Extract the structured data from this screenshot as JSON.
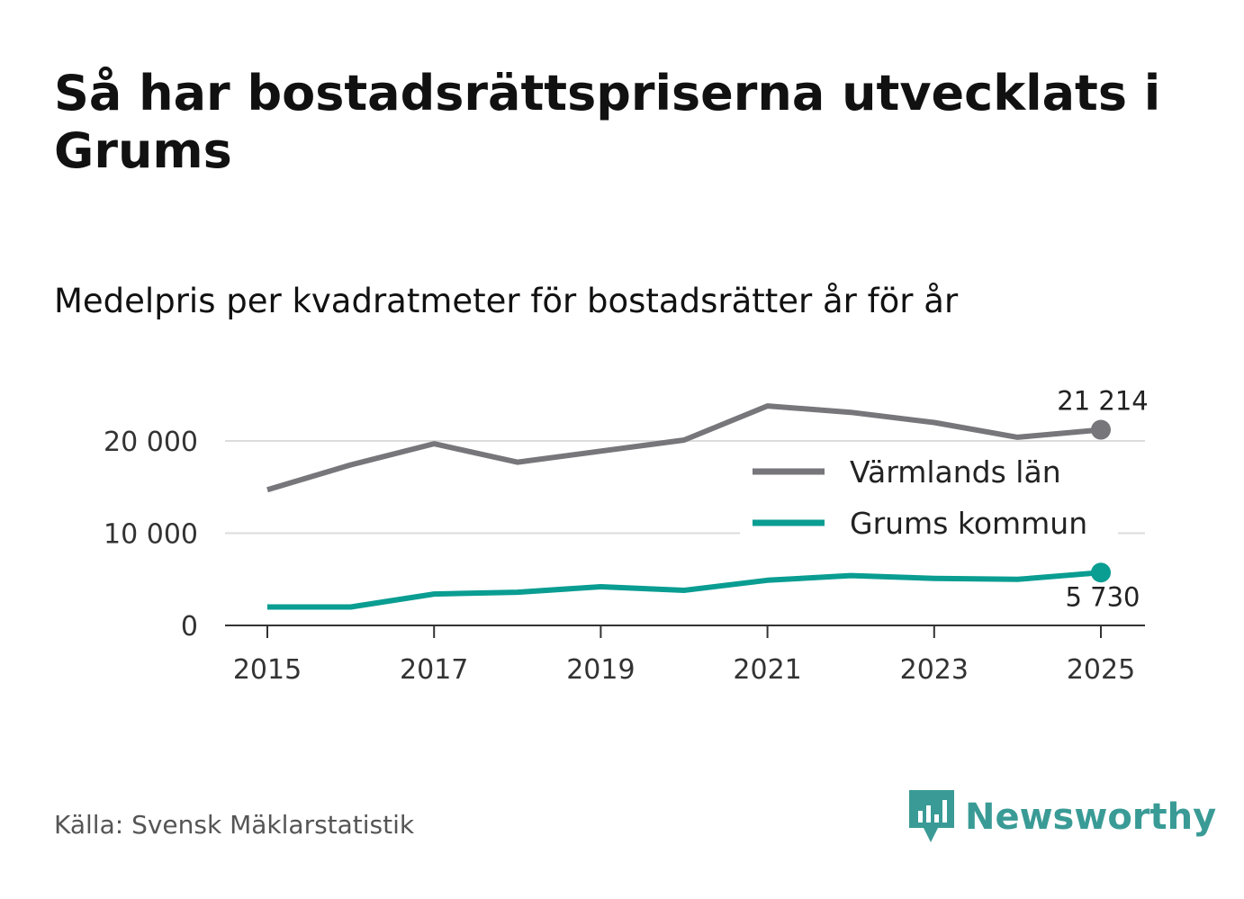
{
  "title": "Så har bostadsrättspriserna utvecklats i Grums",
  "subtitle": "Medelpris per kvadratmeter för bostadsrätter år för år",
  "source": "Källa: Svensk Mäklarstatistik",
  "brand": {
    "name": "Newsworthy",
    "icon": "newsworthy-logo-icon",
    "color": "#3a9b96"
  },
  "chart_data": {
    "type": "line",
    "title": "",
    "xlabel": "",
    "ylabel": "",
    "x": [
      2015,
      2016,
      2017,
      2018,
      2019,
      2020,
      2021,
      2022,
      2023,
      2024,
      2025
    ],
    "x_ticks": [
      "2015",
      "2017",
      "2019",
      "2021",
      "2023",
      "2025"
    ],
    "y_ticks": [
      0,
      10000,
      20000
    ],
    "y_tick_labels": [
      "0",
      "10 000",
      "20 000"
    ],
    "ylim": [
      0,
      25000
    ],
    "grid": true,
    "legend_position": "right",
    "series": [
      {
        "name": "Värmlands län",
        "color": "#76767b",
        "values": [
          14700,
          17400,
          19700,
          17700,
          18900,
          20100,
          23800,
          23100,
          22000,
          20400,
          21214
        ],
        "end_label": "21 214"
      },
      {
        "name": "Grums kommun",
        "color": "#0a9d92",
        "values": [
          2000,
          2000,
          3400,
          3600,
          4200,
          3800,
          4900,
          5400,
          5100,
          5000,
          5730
        ],
        "end_label": "5 730"
      }
    ]
  }
}
